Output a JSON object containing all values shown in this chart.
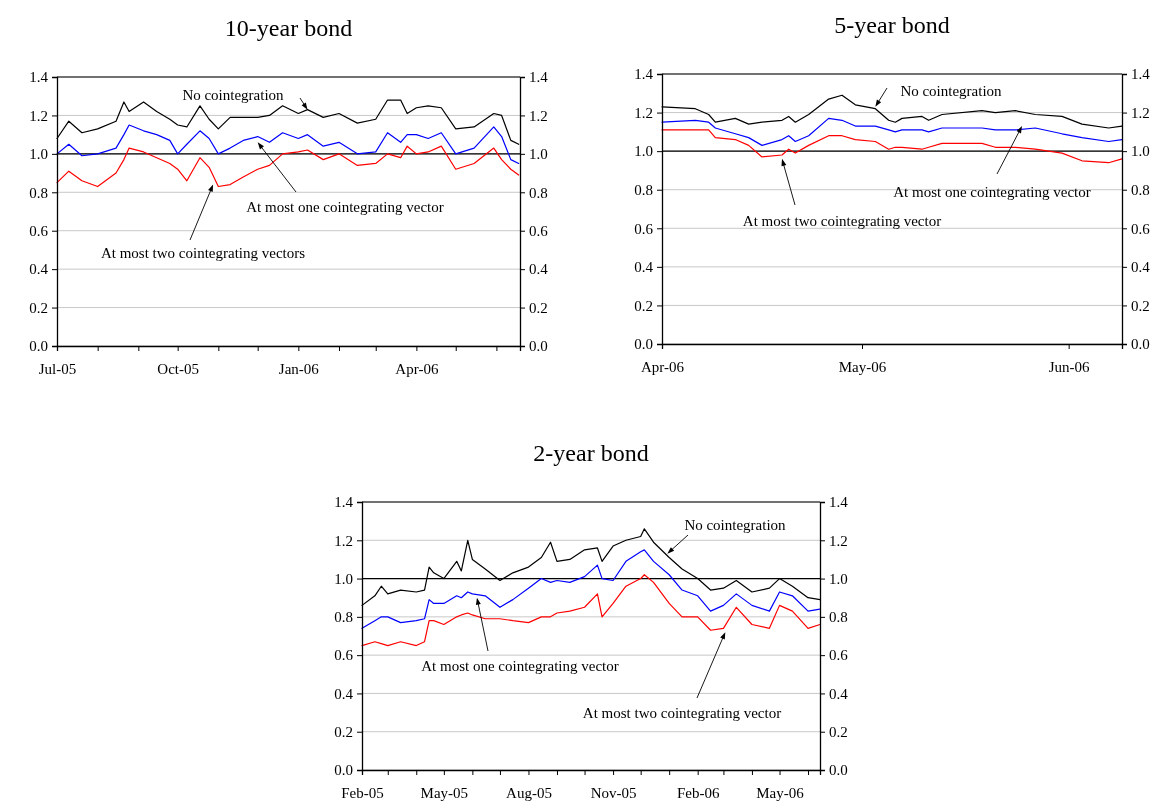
{
  "chart_data": [
    {
      "type": "line",
      "title": "10-year bond",
      "x": [
        "2005-07-01",
        "2005-07-10",
        "2005-07-20",
        "2005-08-01",
        "2005-08-15",
        "2005-08-21",
        "2005-08-25",
        "2005-09-05",
        "2005-09-15",
        "2005-09-25",
        "2005-10-01",
        "2005-10-08",
        "2005-10-18",
        "2005-10-25",
        "2005-11-01",
        "2005-11-10",
        "2005-11-20",
        "2005-12-01",
        "2005-12-10",
        "2005-12-20",
        "2006-01-01",
        "2006-01-08",
        "2006-01-20",
        "2006-02-01",
        "2006-02-15",
        "2006-03-01",
        "2006-03-10",
        "2006-03-20",
        "2006-03-25",
        "2006-04-01",
        "2006-04-10",
        "2006-04-20",
        "2006-05-01",
        "2006-05-15",
        "2006-05-30",
        "2006-06-05",
        "2006-06-12",
        "2006-06-18"
      ],
      "series": [
        {
          "color": "#000000",
          "values": [
            1.08,
            1.17,
            1.11,
            1.13,
            1.17,
            1.27,
            1.22,
            1.27,
            1.22,
            1.18,
            1.15,
            1.14,
            1.25,
            1.18,
            1.13,
            1.19,
            1.19,
            1.19,
            1.2,
            1.25,
            1.21,
            1.23,
            1.19,
            1.21,
            1.16,
            1.18,
            1.28,
            1.28,
            1.21,
            1.24,
            1.25,
            1.24,
            1.13,
            1.14,
            1.21,
            1.2,
            1.07,
            1.05
          ]
        },
        {
          "color": "#0000ff",
          "values": [
            1.0,
            1.05,
            0.99,
            1.0,
            1.03,
            1.1,
            1.15,
            1.12,
            1.1,
            1.07,
            1.0,
            1.05,
            1.12,
            1.08,
            1.0,
            1.03,
            1.07,
            1.09,
            1.06,
            1.11,
            1.08,
            1.1,
            1.04,
            1.06,
            1.0,
            1.01,
            1.11,
            1.06,
            1.1,
            1.1,
            1.08,
            1.11,
            1.0,
            1.03,
            1.14,
            1.09,
            0.97,
            0.95
          ]
        },
        {
          "color": "#ff0000",
          "values": [
            0.85,
            0.91,
            0.86,
            0.83,
            0.9,
            0.97,
            1.03,
            1.01,
            0.98,
            0.95,
            0.92,
            0.86,
            0.98,
            0.93,
            0.83,
            0.84,
            0.88,
            0.92,
            0.94,
            1.0,
            1.01,
            1.02,
            0.97,
            1.0,
            0.94,
            0.95,
            1.0,
            0.98,
            1.04,
            1.0,
            1.01,
            1.04,
            0.92,
            0.95,
            1.03,
            0.97,
            0.92,
            0.89
          ]
        }
      ],
      "xlim": [
        "2005-07-01",
        "2006-06-19"
      ],
      "xticks": [
        {
          "value": "2005-07",
          "label": "Jul-05"
        },
        {
          "value": "2005-08",
          "label": null
        },
        {
          "value": "2005-09",
          "label": null
        },
        {
          "value": "2005-10",
          "label": "Oct-05"
        },
        {
          "value": "2005-11",
          "label": null
        },
        {
          "value": "2005-12",
          "label": null
        },
        {
          "value": "2006-01",
          "label": "Jan-06"
        },
        {
          "value": "2006-02",
          "label": null
        },
        {
          "value": "2006-03",
          "label": null
        },
        {
          "value": "2006-04",
          "label": "Apr-06"
        },
        {
          "value": "2006-05",
          "label": null
        },
        {
          "value": "2006-06",
          "label": null
        }
      ],
      "ylim": [
        0,
        1.4
      ],
      "yticks": [
        {
          "value": 0,
          "label": "0.0"
        },
        {
          "value": 0.2,
          "label": "0.2"
        },
        {
          "value": 0.4,
          "label": "0.4"
        },
        {
          "value": 0.6,
          "label": "0.6"
        },
        {
          "value": 0.8,
          "label": "0.8"
        },
        {
          "value": 1,
          "label": "1.0"
        },
        {
          "value": 1.2,
          "label": "1.2"
        },
        {
          "value": 1.4,
          "label": "1.4"
        }
      ],
      "y2lim": [
        0,
        1.4
      ],
      "y2ticks": [
        {
          "value": 0,
          "label": "0.0"
        },
        {
          "value": 0.2,
          "label": "0.2"
        },
        {
          "value": 0.4,
          "label": "0.4"
        },
        {
          "value": 0.6,
          "label": "0.6"
        },
        {
          "value": 0.8,
          "label": "0.8"
        },
        {
          "value": 1,
          "label": "1.0"
        },
        {
          "value": 1.2,
          "label": "1.2"
        },
        {
          "value": 1.4,
          "label": "1.4"
        }
      ],
      "grid": "y",
      "ref_lines": [
        {
          "axis": "y",
          "value": 1,
          "color": "#000000"
        }
      ],
      "annotations": [
        {
          "text": "No cointegration",
          "x": "2006-01-08",
          "y": 1.23
        },
        {
          "text": "At most one cointegrating vector",
          "x": "2005-12-01",
          "y": 1.06
        },
        {
          "text": "At most two cointegrating vectors",
          "x": "2005-10-28",
          "y": 0.84
        }
      ]
    },
    {
      "type": "line",
      "title": "5-year bond",
      "x": [
        "2006-04-01",
        "2006-04-06",
        "2006-04-08",
        "2006-04-09",
        "2006-04-12",
        "2006-04-14",
        "2006-04-16",
        "2006-04-19",
        "2006-04-20",
        "2006-04-21",
        "2006-04-23",
        "2006-04-26",
        "2006-04-28",
        "2006-04-30",
        "2006-05-03",
        "2006-05-05",
        "2006-05-06",
        "2006-05-07",
        "2006-05-10",
        "2006-05-11",
        "2006-05-13",
        "2006-05-19",
        "2006-05-21",
        "2006-05-24",
        "2006-05-27",
        "2006-05-31",
        "2006-06-03",
        "2006-06-07",
        "2006-06-09"
      ],
      "series": [
        {
          "color": "#000000",
          "values": [
            1.23,
            1.22,
            1.19,
            1.15,
            1.17,
            1.14,
            1.15,
            1.16,
            1.18,
            1.15,
            1.19,
            1.27,
            1.29,
            1.24,
            1.22,
            1.16,
            1.15,
            1.17,
            1.18,
            1.16,
            1.19,
            1.21,
            1.2,
            1.21,
            1.19,
            1.18,
            1.14,
            1.12,
            1.13
          ]
        },
        {
          "color": "#0000ff",
          "values": [
            1.15,
            1.16,
            1.15,
            1.12,
            1.09,
            1.07,
            1.03,
            1.06,
            1.08,
            1.05,
            1.08,
            1.17,
            1.16,
            1.13,
            1.13,
            1.11,
            1.1,
            1.11,
            1.11,
            1.1,
            1.12,
            1.12,
            1.11,
            1.11,
            1.12,
            1.09,
            1.07,
            1.05,
            1.06
          ]
        },
        {
          "color": "#ff0000",
          "values": [
            1.11,
            1.11,
            1.11,
            1.07,
            1.06,
            1.03,
            0.97,
            0.98,
            1.01,
            0.99,
            1.03,
            1.08,
            1.08,
            1.06,
            1.05,
            1.01,
            1.02,
            1.02,
            1.01,
            1.02,
            1.04,
            1.04,
            1.02,
            1.02,
            1.01,
            0.99,
            0.95,
            0.94,
            0.96
          ]
        }
      ],
      "xlim": [
        "2006-04-01",
        "2006-06-09"
      ],
      "xticks": [
        {
          "value": "2006-04",
          "label": "Apr-06"
        },
        {
          "value": "2006-05",
          "label": "May-06"
        },
        {
          "value": "2006-06",
          "label": "Jun-06"
        }
      ],
      "ylim": [
        0,
        1.4
      ],
      "yticks": [
        {
          "value": 0,
          "label": "0.0"
        },
        {
          "value": 0.2,
          "label": "0.2"
        },
        {
          "value": 0.4,
          "label": "0.4"
        },
        {
          "value": 0.6,
          "label": "0.6"
        },
        {
          "value": 0.8,
          "label": "0.8"
        },
        {
          "value": 1,
          "label": "1.0"
        },
        {
          "value": 1.2,
          "label": "1.2"
        },
        {
          "value": 1.4,
          "label": "1.4"
        }
      ],
      "y2lim": [
        0,
        1.4
      ],
      "y2ticks": [
        {
          "value": 0,
          "label": "0.0"
        },
        {
          "value": 0.2,
          "label": "0.2"
        },
        {
          "value": 0.4,
          "label": "0.4"
        },
        {
          "value": 0.6,
          "label": "0.6"
        },
        {
          "value": 0.8,
          "label": "0.8"
        },
        {
          "value": 1,
          "label": "1.0"
        },
        {
          "value": 1.2,
          "label": "1.2"
        },
        {
          "value": 1.4,
          "label": "1.4"
        }
      ],
      "grid": "y",
      "ref_lines": [
        {
          "axis": "y",
          "value": 1,
          "color": "#000000"
        }
      ],
      "annotations": [
        {
          "text": "No cointegration",
          "x": "2006-05-03",
          "y": 1.23
        },
        {
          "text": "At most one cointegrating vector",
          "x": "2006-05-25",
          "y": 1.13
        },
        {
          "text": "At most two cointegrating vector",
          "x": "2006-04-19",
          "y": 0.96
        }
      ]
    },
    {
      "type": "line",
      "title": "2-year bond",
      "x": [
        "2005-02-01",
        "2005-02-15",
        "2005-02-22",
        "2005-03-01",
        "2005-03-15",
        "2005-04-01",
        "2005-04-10",
        "2005-04-15",
        "2005-04-20",
        "2005-05-01",
        "2005-05-15",
        "2005-05-20",
        "2005-05-27",
        "2005-06-01",
        "2005-06-15",
        "2005-07-01",
        "2005-07-15",
        "2005-08-01",
        "2005-08-15",
        "2005-08-25",
        "2005-09-01",
        "2005-09-15",
        "2005-10-01",
        "2005-10-15",
        "2005-10-20",
        "2005-11-01",
        "2005-11-15",
        "2005-12-01",
        "2005-12-05",
        "2005-12-15",
        "2006-01-01",
        "2006-01-15",
        "2006-02-01",
        "2006-02-15",
        "2006-03-01",
        "2006-03-15",
        "2006-04-01",
        "2006-04-20",
        "2006-05-01",
        "2006-05-15",
        "2006-06-01",
        "2006-06-14"
      ],
      "series": [
        {
          "color": "#000000",
          "values": [
            0.86,
            0.91,
            0.96,
            0.92,
            0.94,
            0.93,
            0.94,
            1.06,
            1.03,
            1.0,
            1.09,
            1.04,
            1.2,
            1.1,
            1.05,
            0.99,
            1.03,
            1.06,
            1.11,
            1.19,
            1.09,
            1.1,
            1.15,
            1.16,
            1.09,
            1.17,
            1.2,
            1.22,
            1.26,
            1.19,
            1.11,
            1.05,
            1.0,
            0.94,
            0.95,
            0.99,
            0.93,
            0.95,
            1.0,
            0.96,
            0.9,
            0.89
          ]
        },
        {
          "color": "#0000ff",
          "values": [
            0.74,
            0.78,
            0.8,
            0.8,
            0.77,
            0.78,
            0.79,
            0.89,
            0.87,
            0.87,
            0.91,
            0.9,
            0.93,
            0.92,
            0.91,
            0.85,
            0.89,
            0.95,
            1.0,
            0.98,
            0.99,
            0.98,
            1.01,
            1.07,
            1.0,
            0.99,
            1.09,
            1.14,
            1.15,
            1.09,
            1.02,
            0.94,
            0.91,
            0.83,
            0.86,
            0.92,
            0.86,
            0.83,
            0.93,
            0.91,
            0.83,
            0.84
          ]
        },
        {
          "color": "#ff0000",
          "values": [
            0.65,
            0.67,
            0.66,
            0.65,
            0.67,
            0.65,
            0.67,
            0.78,
            0.78,
            0.76,
            0.8,
            0.81,
            0.82,
            0.81,
            0.79,
            0.79,
            0.78,
            0.77,
            0.8,
            0.8,
            0.82,
            0.83,
            0.85,
            0.92,
            0.8,
            0.87,
            0.96,
            1.0,
            1.02,
            0.98,
            0.87,
            0.8,
            0.8,
            0.73,
            0.74,
            0.85,
            0.76,
            0.74,
            0.86,
            0.83,
            0.74,
            0.76
          ]
        }
      ],
      "xlim": [
        "2005-02-01",
        "2006-06-14"
      ],
      "xticks": [
        {
          "value": "2005-02",
          "label": "Feb-05"
        },
        {
          "value": "2005-03",
          "label": null
        },
        {
          "value": "2005-04",
          "label": null
        },
        {
          "value": "2005-05",
          "label": "May-05"
        },
        {
          "value": "2005-06",
          "label": null
        },
        {
          "value": "2005-07",
          "label": null
        },
        {
          "value": "2005-08",
          "label": "Aug-05"
        },
        {
          "value": "2005-09",
          "label": null
        },
        {
          "value": "2005-10",
          "label": null
        },
        {
          "value": "2005-11",
          "label": "Nov-05"
        },
        {
          "value": "2005-12",
          "label": null
        },
        {
          "value": "2006-01",
          "label": null
        },
        {
          "value": "2006-02",
          "label": "Feb-06"
        },
        {
          "value": "2006-03",
          "label": null
        },
        {
          "value": "2006-04",
          "label": null
        },
        {
          "value": "2006-05",
          "label": "May-06"
        },
        {
          "value": "2006-06",
          "label": null
        }
      ],
      "ylim": [
        0,
        1.4
      ],
      "yticks": [
        {
          "value": 0,
          "label": "0.0"
        },
        {
          "value": 0.2,
          "label": "0.2"
        },
        {
          "value": 0.4,
          "label": "0.4"
        },
        {
          "value": 0.6,
          "label": "0.6"
        },
        {
          "value": 0.8,
          "label": "0.8"
        },
        {
          "value": 1,
          "label": "1.0"
        },
        {
          "value": 1.2,
          "label": "1.2"
        },
        {
          "value": 1.4,
          "label": "1.4"
        }
      ],
      "y2lim": [
        0,
        1.4
      ],
      "y2ticks": [
        {
          "value": 0,
          "label": "0.0"
        },
        {
          "value": 0.2,
          "label": "0.2"
        },
        {
          "value": 0.4,
          "label": "0.4"
        },
        {
          "value": 0.6,
          "label": "0.6"
        },
        {
          "value": 0.8,
          "label": "0.8"
        },
        {
          "value": 1,
          "label": "1.0"
        },
        {
          "value": 1.2,
          "label": "1.2"
        },
        {
          "value": 1.4,
          "label": "1.4"
        }
      ],
      "grid": "y",
      "ref_lines": [
        {
          "axis": "y",
          "value": 1,
          "color": "#000000"
        }
      ],
      "annotations": [
        {
          "text": "No cointegration",
          "x": "2005-12-30",
          "y": 1.13
        },
        {
          "text": "At most one cointegrating vector",
          "x": "2005-06-06",
          "y": 0.9
        },
        {
          "text": "At most two cointegrating vector",
          "x": "2006-03-03",
          "y": 0.72
        }
      ]
    }
  ]
}
